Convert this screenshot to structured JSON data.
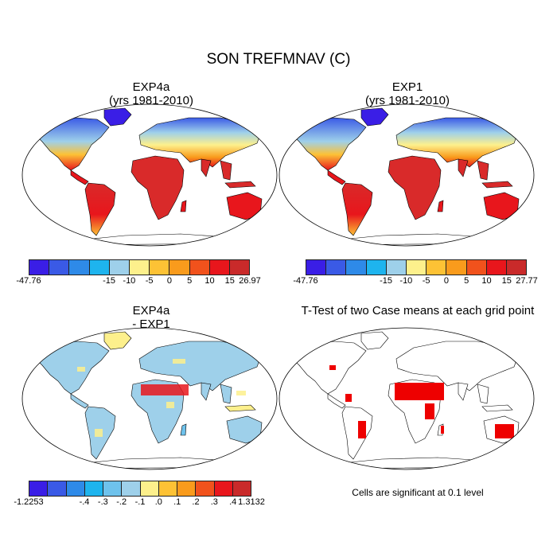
{
  "title": "SON TREFMNAV (C)",
  "panels": [
    {
      "title": "EXP4a\n(yrs 1981-2010)"
    },
    {
      "title": "EXP1\n(yrs 1981-2010)"
    },
    {
      "title": "EXP4a\n- EXP1"
    },
    {
      "title": "T-Test of two Case means at each grid point"
    }
  ],
  "colorbars": [
    {
      "ticks": [
        "-47.76",
        "-15",
        "-10",
        "-5",
        "0",
        "5",
        "10",
        "15",
        "26.97"
      ],
      "colors": [
        "#3a1ee6",
        "#3a5ae6",
        "#2e8ae8",
        "#1eb4ee",
        "#9ed0ea",
        "#fdf08c",
        "#fdc235",
        "#f99b1c",
        "#f1521c",
        "#e8161c",
        "#c92a2a"
      ]
    },
    {
      "ticks": [
        "-47.76",
        "-15",
        "-10",
        "-5",
        "0",
        "5",
        "10",
        "15",
        "27.77"
      ],
      "colors": [
        "#3a1ee6",
        "#3a5ae6",
        "#2e8ae8",
        "#1eb4ee",
        "#9ed0ea",
        "#fdf08c",
        "#fdc235",
        "#f99b1c",
        "#f1521c",
        "#e8161c",
        "#c92a2a"
      ]
    },
    {
      "ticks": [
        "-1.2253",
        "-.4",
        "-.3",
        "-.2",
        "-.1",
        ".0",
        ".1",
        ".2",
        ".3",
        ".4",
        "1.3132"
      ],
      "colors": [
        "#3a1ee6",
        "#3a5ae6",
        "#2e8ae8",
        "#1eb4ee",
        "#6ec2ec",
        "#9ed0ea",
        "#fdf08c",
        "#fdc235",
        "#f99b1c",
        "#f1521c",
        "#e8161c",
        "#c92a2a"
      ]
    }
  ],
  "note": "Cells are significant at 0.1 level",
  "colors": {
    "ocean": "#ffffff",
    "coast": "#000000",
    "signif": "#ee0000"
  }
}
